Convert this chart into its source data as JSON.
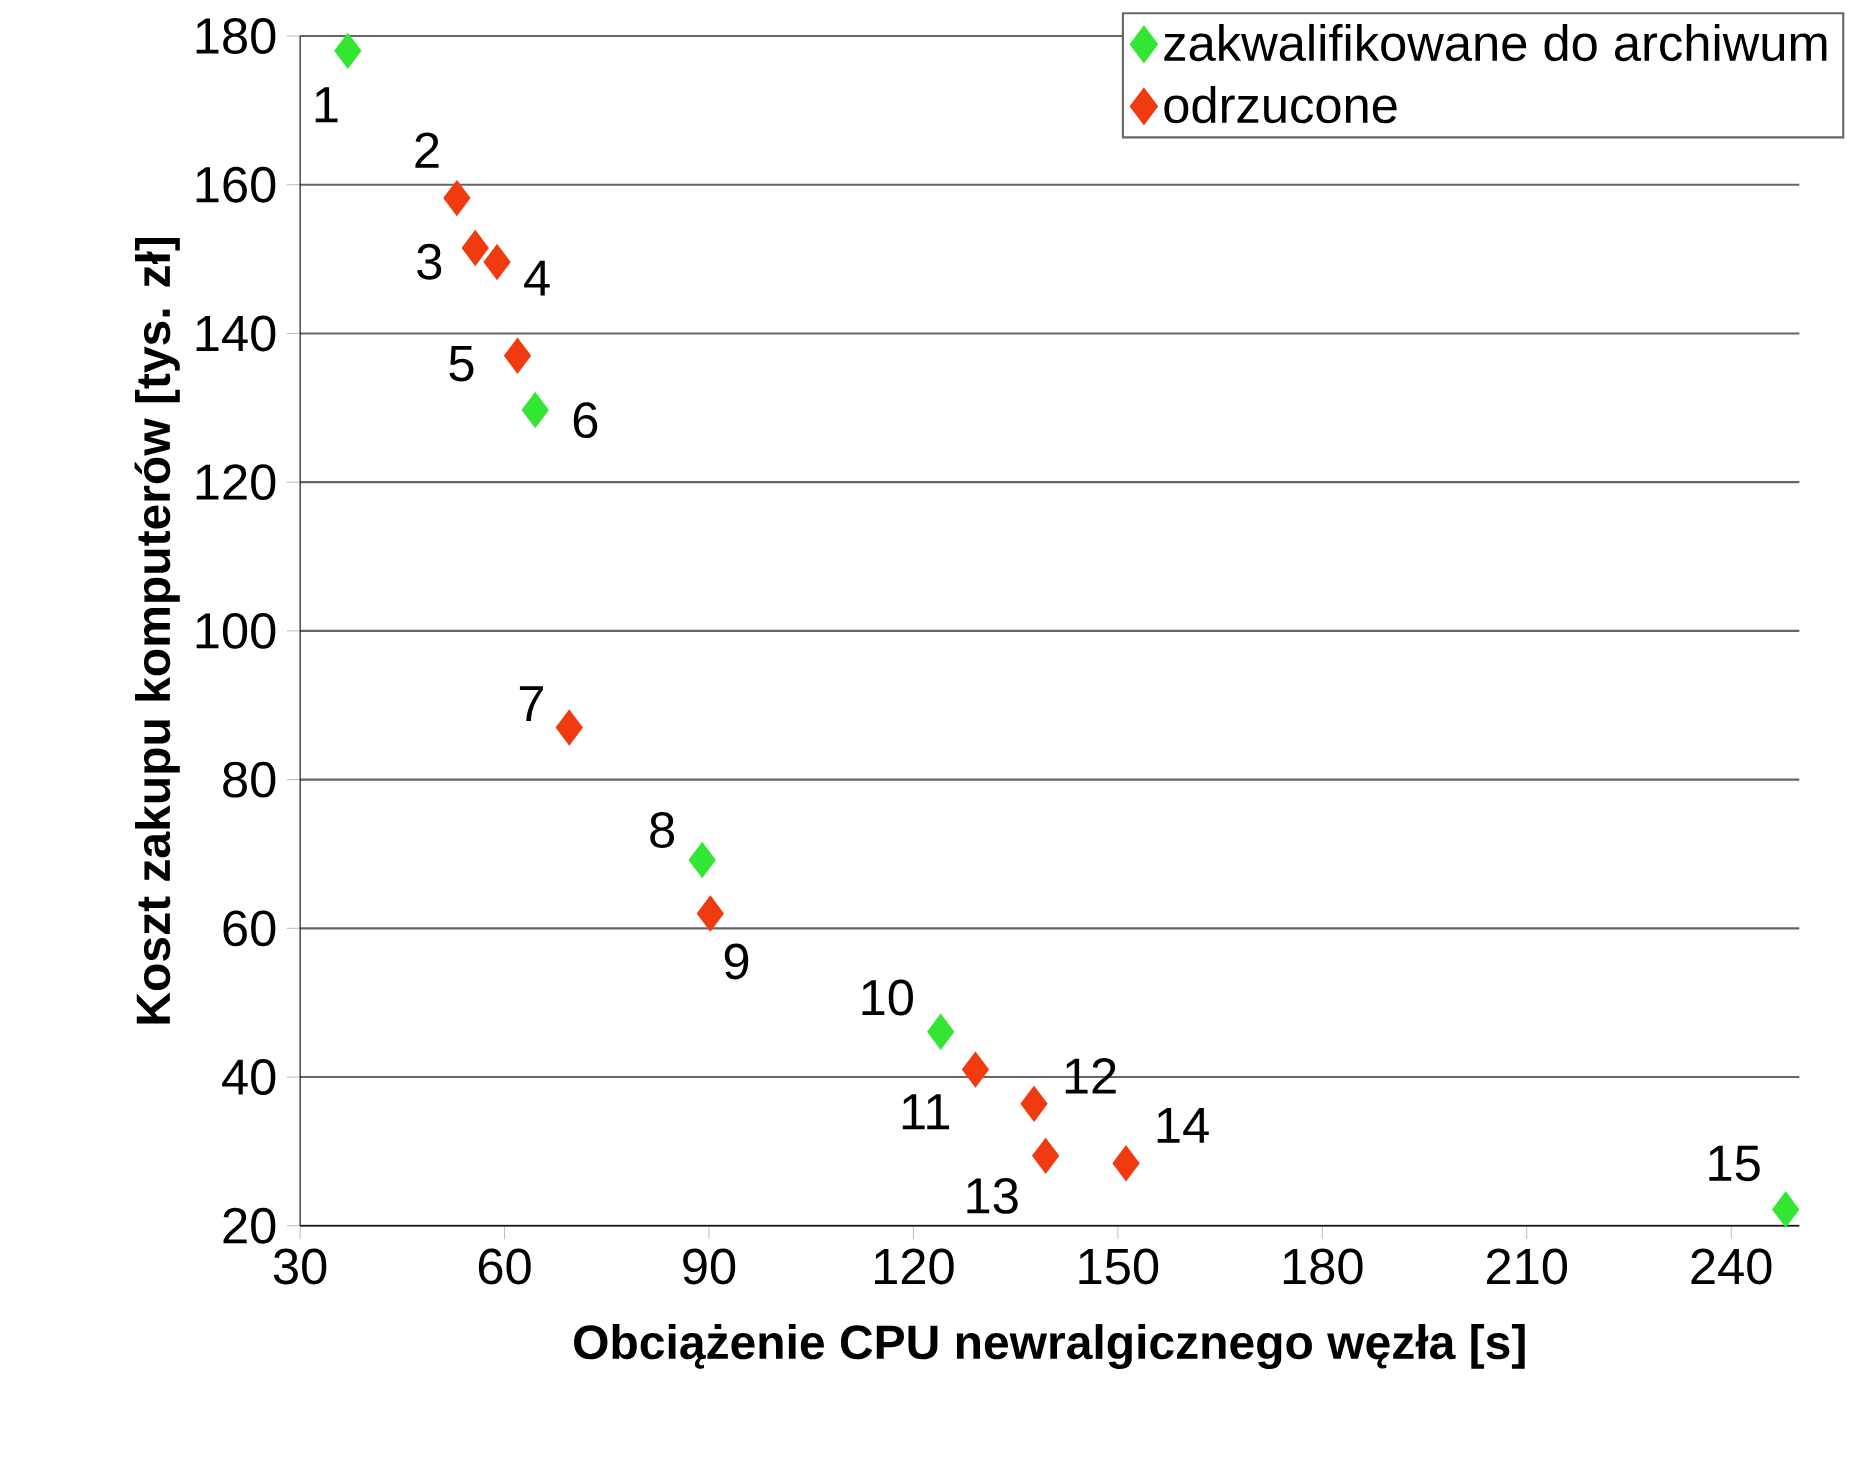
{
  "chart_data": {
    "type": "scatter",
    "xlabel": "Obciążenie CPU newralgicznego węzła [s]",
    "ylabel": "Koszt zakupu komputerów [tys. zł]",
    "xlim": [
      30,
      250
    ],
    "ylim": [
      20,
      180
    ],
    "xticks": [
      30,
      60,
      90,
      120,
      150,
      180,
      210,
      240
    ],
    "yticks": [
      20,
      40,
      60,
      80,
      100,
      120,
      140,
      160,
      180
    ],
    "grid": "y",
    "legend": "top right",
    "marker": "diamond",
    "series": [
      {
        "name": "zakwalifikowane do archiwum",
        "color": "#33e633",
        "x": [
          37,
          64.5,
          89,
          124,
          248
        ],
        "values": [
          178,
          129.7,
          69.2,
          46.1,
          22.2
        ]
      },
      {
        "name": "odrzucone",
        "color": "#f03a10",
        "x": [
          53,
          55.7,
          58.9,
          61.9,
          69.5,
          90.2,
          129.1,
          137.7,
          139.4,
          151.2
        ],
        "values": [
          158.2,
          151.5,
          149.6,
          137,
          87,
          62,
          41,
          36.4,
          29.4,
          28.4
        ]
      }
    ],
    "annotations": [
      {
        "text": "1",
        "x": 37,
        "y": 178
      },
      {
        "text": "2",
        "x": 53,
        "y": 158.2
      },
      {
        "text": "3",
        "x": 55.7,
        "y": 151.5
      },
      {
        "text": "4",
        "x": 58.9,
        "y": 149.6
      },
      {
        "text": "5",
        "x": 61.9,
        "y": 137
      },
      {
        "text": "6",
        "x": 64.5,
        "y": 129.7
      },
      {
        "text": "7",
        "x": 69.5,
        "y": 87
      },
      {
        "text": "8",
        "x": 89,
        "y": 69.2
      },
      {
        "text": "9",
        "x": 90.2,
        "y": 62
      },
      {
        "text": "10",
        "x": 124,
        "y": 46.1
      },
      {
        "text": "11",
        "x": 129.1,
        "y": 41
      },
      {
        "text": "12",
        "x": 137.7,
        "y": 36.4
      },
      {
        "text": "13",
        "x": 139.4,
        "y": 29.4
      },
      {
        "text": "14",
        "x": 151.2,
        "y": 28.4
      },
      {
        "text": "15",
        "x": 248,
        "y": 22.2
      }
    ]
  }
}
